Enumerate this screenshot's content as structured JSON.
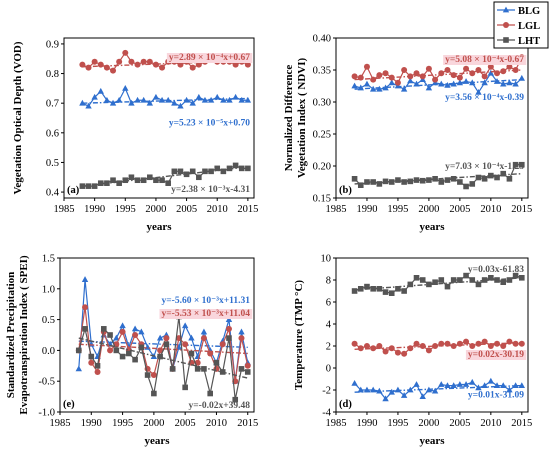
{
  "colors": {
    "BLG": "#2f6fce",
    "LGL": "#c0504d",
    "LHT": "#555555",
    "highlight": "#f9d6dc"
  },
  "legend": {
    "items": [
      {
        "key": "BLG",
        "label": "BLG",
        "marker": "triangle"
      },
      {
        "key": "LGL",
        "label": "LGL",
        "marker": "circle"
      },
      {
        "key": "LHT",
        "label": "LHT",
        "marker": "square"
      }
    ]
  },
  "chart_data": [
    {
      "id": "a",
      "type": "line",
      "panel_label": "(a)",
      "xlabel": "years",
      "ylabel": "Vegetation Optical Depth (VOD)",
      "xlim": [
        1985,
        2016
      ],
      "ylim": [
        0.38,
        0.92
      ],
      "xticks": [
        1985,
        1990,
        1995,
        2000,
        2005,
        2010,
        2015
      ],
      "yticks": [
        0.4,
        0.5,
        0.6,
        0.7,
        0.8,
        0.9
      ],
      "ytick_labels": [
        "0.4",
        "0.5",
        "0.6",
        "0.7",
        "0.8",
        "0.9"
      ],
      "x": [
        1988,
        1989,
        1990,
        1991,
        1992,
        1993,
        1994,
        1995,
        1996,
        1997,
        1998,
        1999,
        2000,
        2001,
        2002,
        2003,
        2004,
        2005,
        2006,
        2007,
        2008,
        2009,
        2010,
        2011,
        2012,
        2013,
        2014,
        2015
      ],
      "series": [
        {
          "key": "BLG",
          "values": [
            0.7,
            0.69,
            0.72,
            0.74,
            0.71,
            0.7,
            0.71,
            0.75,
            0.7,
            0.71,
            0.71,
            0.7,
            0.72,
            0.71,
            0.71,
            0.7,
            0.69,
            0.71,
            0.7,
            0.72,
            0.71,
            0.71,
            0.72,
            0.71,
            0.71,
            0.72,
            0.71,
            0.71
          ],
          "trend": [
            0.7,
            0.716
          ],
          "equation": "y=5.23 × 10⁻⁵x+0.70",
          "eq_pos": "middle-right",
          "highlight": false
        },
        {
          "key": "LGL",
          "values": [
            0.83,
            0.82,
            0.84,
            0.83,
            0.82,
            0.81,
            0.84,
            0.87,
            0.84,
            0.83,
            0.84,
            0.84,
            0.83,
            0.82,
            0.84,
            0.84,
            0.83,
            0.84,
            0.82,
            0.83,
            0.84,
            0.85,
            0.84,
            0.84,
            0.84,
            0.83,
            0.84,
            0.83
          ],
          "trend": [
            0.823,
            0.843
          ],
          "equation": "y=2.89 × 10⁻⁴x+0.67",
          "eq_pos": "top-right",
          "highlight": true
        },
        {
          "key": "LHT",
          "values": [
            0.42,
            0.42,
            0.42,
            0.43,
            0.43,
            0.44,
            0.43,
            0.44,
            0.45,
            0.44,
            0.44,
            0.45,
            0.44,
            0.44,
            0.43,
            0.47,
            0.47,
            0.46,
            0.47,
            0.45,
            0.47,
            0.47,
            0.48,
            0.47,
            0.48,
            0.49,
            0.48,
            0.48
          ],
          "trend": [
            0.42,
            0.485
          ],
          "equation": "y=2.38 × 10⁻³x-4.31",
          "eq_pos": "bottom-right",
          "highlight": false
        }
      ]
    },
    {
      "id": "b",
      "type": "line",
      "panel_label": "(b)",
      "xlabel": "years",
      "ylabel": "Normalized Difference Vegetation Index ( NDVI)",
      "xlim": [
        1985,
        2016
      ],
      "ylim": [
        0.15,
        0.4
      ],
      "xticks": [
        1985,
        1990,
        1995,
        2000,
        2005,
        2010,
        2015
      ],
      "yticks": [
        0.15,
        0.2,
        0.25,
        0.3,
        0.35,
        0.4
      ],
      "ytick_labels": [
        "0.15",
        "0.20",
        "0.25",
        "0.30",
        "0.35",
        "0.40"
      ],
      "x": [
        1988,
        1989,
        1990,
        1991,
        1992,
        1993,
        1994,
        1995,
        1996,
        1997,
        1998,
        1999,
        2000,
        2001,
        2002,
        2003,
        2004,
        2005,
        2006,
        2007,
        2008,
        2009,
        2010,
        2011,
        2012,
        2013,
        2014,
        2015
      ],
      "series": [
        {
          "key": "BLG",
          "values": [
            0.325,
            0.322,
            0.328,
            0.32,
            0.32,
            0.322,
            0.33,
            0.325,
            0.32,
            0.333,
            0.328,
            0.335,
            0.322,
            0.33,
            0.328,
            0.326,
            0.328,
            0.33,
            0.332,
            0.33,
            0.315,
            0.33,
            0.345,
            0.332,
            0.328,
            0.33,
            0.328,
            0.337
          ],
          "trend": [
            0.32,
            0.335
          ],
          "equation": "y=3.56 × 10⁻⁴x-0.39",
          "eq_pos": "middle-right",
          "highlight": false
        },
        {
          "key": "LGL",
          "values": [
            0.34,
            0.338,
            0.355,
            0.335,
            0.342,
            0.345,
            0.338,
            0.33,
            0.35,
            0.34,
            0.345,
            0.34,
            0.352,
            0.335,
            0.345,
            0.35,
            0.342,
            0.338,
            0.352,
            0.345,
            0.35,
            0.34,
            0.355,
            0.345,
            0.348,
            0.355,
            0.35,
            0.37
          ],
          "trend": [
            0.335,
            0.35
          ],
          "equation": "y=5.08 × 10⁻⁴x-0.67",
          "eq_pos": "top-right",
          "highlight": true
        },
        {
          "key": "LHT",
          "values": [
            0.18,
            0.17,
            0.175,
            0.175,
            0.172,
            0.176,
            0.175,
            0.178,
            0.175,
            0.176,
            0.178,
            0.177,
            0.178,
            0.18,
            0.175,
            0.178,
            0.18,
            0.175,
            0.168,
            0.172,
            0.182,
            0.18,
            0.185,
            0.182,
            0.188,
            0.18,
            0.202,
            0.202
          ],
          "trend": [
            0.172,
            0.188
          ],
          "equation": "y=7.03 × 10⁻⁴x-1.23",
          "eq_pos": "bottom-right",
          "highlight": false
        }
      ]
    },
    {
      "id": "c",
      "type": "line",
      "panel_label": "(e)",
      "xlabel": "years",
      "ylabel": "Standardized Precipitation Evapotranspiration Index ( SPEI)",
      "xlim": [
        1985,
        2016
      ],
      "ylim": [
        -1.0,
        1.5
      ],
      "xticks": [
        1985,
        1990,
        1995,
        2000,
        2005,
        2010,
        2015
      ],
      "yticks": [
        -1.0,
        -0.5,
        0.0,
        0.5,
        1.0,
        1.5
      ],
      "ytick_labels": [
        "-1.0",
        "-0.5",
        "0.0",
        "0.5",
        "1.0",
        "1.5"
      ],
      "x": [
        1988,
        1989,
        1990,
        1991,
        1992,
        1993,
        1994,
        1995,
        1996,
        1997,
        1998,
        1999,
        2000,
        2001,
        2002,
        2003,
        2004,
        2005,
        2006,
        2007,
        2008,
        2009,
        2010,
        2011,
        2012,
        2013,
        2014,
        2015
      ],
      "series": [
        {
          "key": "BLG",
          "values": [
            -0.3,
            1.15,
            0.1,
            -0.1,
            0.25,
            0.1,
            0.2,
            0.4,
            0.05,
            0.35,
            0.3,
            0.05,
            -0.1,
            0.2,
            0.25,
            -0.3,
            0.05,
            0.4,
            0.2,
            -0.1,
            0.3,
            0.0,
            -0.2,
            0.15,
            0.5,
            -0.5,
            0.3,
            -0.2
          ],
          "trend": [
            0.15,
            0.05
          ],
          "equation": "y=-5.60 × 10⁻³x+11.31",
          "eq_pos": "top-right",
          "highlight": false
        },
        {
          "key": "LGL",
          "values": [
            0.0,
            0.7,
            -0.2,
            -0.35,
            0.3,
            0.0,
            0.1,
            0.3,
            0.0,
            0.25,
            0.1,
            -0.3,
            -0.4,
            0.0,
            0.2,
            -0.3,
            0.2,
            0.1,
            -0.2,
            -0.2,
            0.2,
            -0.05,
            -0.3,
            0.1,
            0.35,
            -0.5,
            0.2,
            -0.25
          ],
          "trend": [
            0.1,
            -0.05
          ],
          "equation": "y=-5.53 × 10⁻³x+11.04",
          "eq_pos": "top-right-2",
          "highlight": true
        },
        {
          "key": "LHT",
          "values": [
            0.0,
            0.35,
            -0.1,
            -0.25,
            0.35,
            0.25,
            0.0,
            -0.1,
            -0.05,
            -0.15,
            0.05,
            -0.4,
            -0.7,
            -0.1,
            0.1,
            -0.3,
            0.55,
            -0.6,
            -0.05,
            -0.3,
            -0.3,
            -0.7,
            -0.2,
            -0.35,
            0.2,
            -0.8,
            -0.3,
            -0.35
          ],
          "trend": [
            0.2,
            -0.45
          ],
          "equation": "y=-0.02x+39.48",
          "eq_pos": "bottom-right",
          "highlight": false
        }
      ]
    },
    {
      "id": "d",
      "type": "line",
      "panel_label": "(d)",
      "xlabel": "years",
      "ylabel": "Temperature (TMP °C)",
      "xlim": [
        1985,
        2016
      ],
      "ylim": [
        -4,
        10
      ],
      "xticks": [
        1985,
        1990,
        1995,
        2000,
        2005,
        2010,
        2015
      ],
      "yticks": [
        -4,
        -2,
        0,
        2,
        4,
        6,
        8,
        10
      ],
      "ytick_labels": [
        "-4",
        "-2",
        "0",
        "2",
        "4",
        "6",
        "8",
        "10"
      ],
      "x": [
        1988,
        1989,
        1990,
        1991,
        1992,
        1993,
        1994,
        1995,
        1996,
        1997,
        1998,
        1999,
        2000,
        2001,
        2002,
        2003,
        2004,
        2005,
        2006,
        2007,
        2008,
        2009,
        2010,
        2011,
        2012,
        2013,
        2014,
        2015
      ],
      "series": [
        {
          "key": "BLG",
          "values": [
            -1.4,
            -2.0,
            -2.0,
            -2.0,
            -2.1,
            -2.8,
            -2.2,
            -2.0,
            -2.5,
            -2.0,
            -1.5,
            -2.6,
            -2.0,
            -2.1,
            -1.5,
            -1.6,
            -1.6,
            -1.5,
            -1.5,
            -1.3,
            -1.8,
            -1.6,
            -1.2,
            -1.6,
            -1.6,
            -2.0,
            -1.6,
            -1.6
          ],
          "trend": [
            -2.2,
            -1.6
          ],
          "equation": "y=0.01x-31.09",
          "eq_pos": "bottom-right",
          "highlight": false
        },
        {
          "key": "LGL",
          "values": [
            2.2,
            1.8,
            2.0,
            1.8,
            2.0,
            1.5,
            1.8,
            1.4,
            1.3,
            1.8,
            2.2,
            2.0,
            1.6,
            2.0,
            2.2,
            2.2,
            2.0,
            2.2,
            2.4,
            2.0,
            2.2,
            2.4,
            2.0,
            2.2,
            2.0,
            2.4,
            2.2,
            2.2
          ],
          "trend": [
            1.7,
            2.3
          ],
          "equation": "y=0.02x-30.19",
          "eq_pos": "middle-right",
          "highlight": true
        },
        {
          "key": "LHT",
          "values": [
            7.0,
            7.2,
            7.4,
            7.2,
            7.2,
            6.9,
            6.8,
            7.2,
            7.0,
            7.6,
            8.2,
            8.0,
            7.6,
            7.8,
            8.0,
            7.4,
            8.0,
            8.0,
            8.4,
            8.0,
            7.6,
            8.0,
            8.2,
            8.0,
            7.8,
            8.0,
            8.4,
            8.2
          ],
          "trend": [
            7.1,
            8.2
          ],
          "equation": "y=0.03x-61.83",
          "eq_pos": "top-right",
          "highlight": false
        }
      ]
    }
  ]
}
